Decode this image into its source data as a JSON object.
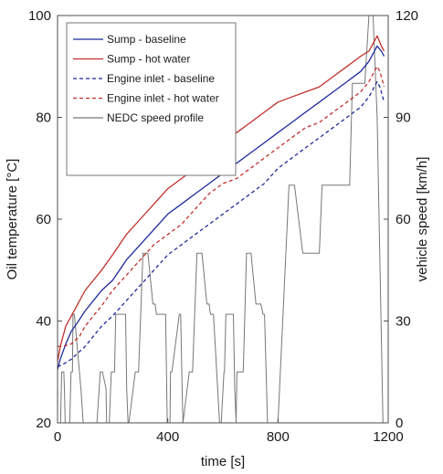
{
  "chart_data": {
    "type": "line",
    "xlabel": "time [s]",
    "ylabel": "Oil temperature [°C]",
    "y2label": "vehicle speed [km/h]",
    "xlim": [
      0,
      1200
    ],
    "ylim": [
      20,
      100
    ],
    "y2lim": [
      0,
      120
    ],
    "xticks": [
      "0",
      "400",
      "800",
      "1200"
    ],
    "xtick_values": [
      0,
      400,
      800,
      1200
    ],
    "yticks": [
      "20",
      "40",
      "60",
      "80",
      "100"
    ],
    "ytick_values": [
      20,
      40,
      60,
      80,
      100
    ],
    "y2ticks": [
      "0",
      "30",
      "60",
      "90",
      "120"
    ],
    "y2tick_values": [
      0,
      30,
      60,
      90,
      120
    ],
    "grid": false,
    "legend_position": "top-left",
    "series": [
      {
        "name": "Sump - baseline",
        "axis": "left",
        "color": "#1f2a9c",
        "style": "solid",
        "x": [
          0,
          10,
          30,
          50,
          70,
          100,
          130,
          160,
          200,
          250,
          300,
          350,
          400,
          450,
          500,
          550,
          600,
          650,
          700,
          750,
          800,
          850,
          900,
          950,
          1000,
          1050,
          1100,
          1130,
          1150,
          1160,
          1175,
          1185
        ],
        "y": [
          30.5,
          32.5,
          35.5,
          38,
          39.5,
          42,
          44,
          46,
          48,
          52,
          55,
          58,
          61,
          63,
          65,
          67,
          69,
          71,
          73,
          75,
          77,
          79,
          81,
          83,
          85,
          87,
          89,
          91,
          93,
          94,
          93,
          92
        ]
      },
      {
        "name": "Sump - hot water",
        "axis": "left",
        "color": "#c0302a",
        "style": "solid",
        "x": [
          0,
          10,
          30,
          50,
          70,
          100,
          130,
          160,
          200,
          250,
          300,
          350,
          400,
          450,
          500,
          550,
          600,
          650,
          700,
          750,
          800,
          850,
          900,
          950,
          1000,
          1050,
          1100,
          1130,
          1150,
          1160,
          1175,
          1185
        ],
        "y": [
          32,
          35,
          39,
          41,
          43,
          46,
          48,
          50,
          53,
          57,
          60,
          63,
          66,
          68,
          70,
          73,
          75,
          77,
          79,
          81,
          83,
          84,
          85,
          86,
          88,
          90,
          92,
          93,
          95,
          96,
          94,
          93
        ]
      },
      {
        "name": "Engine inlet - baseline",
        "axis": "left",
        "color": "#1f2a9c",
        "style": "dash",
        "x": [
          0,
          20,
          50,
          80,
          100,
          130,
          160,
          200,
          250,
          300,
          350,
          400,
          450,
          500,
          550,
          600,
          650,
          700,
          750,
          800,
          850,
          900,
          950,
          1000,
          1050,
          1100,
          1130,
          1150,
          1160,
          1170,
          1180,
          1185
        ],
        "y": [
          31,
          31.5,
          32.5,
          34,
          35,
          37,
          39,
          41,
          44,
          47,
          50,
          53,
          55,
          57,
          59,
          61,
          63,
          65,
          67,
          70,
          72,
          74,
          76,
          78,
          80,
          82,
          84,
          86,
          87,
          86,
          84,
          83
        ]
      },
      {
        "name": "Engine inlet - hot water",
        "axis": "left",
        "color": "#c0302a",
        "style": "dash",
        "x": [
          0,
          20,
          50,
          80,
          100,
          130,
          160,
          200,
          250,
          300,
          350,
          400,
          450,
          500,
          550,
          600,
          650,
          700,
          750,
          800,
          850,
          900,
          950,
          1000,
          1050,
          1100,
          1130,
          1150,
          1160,
          1170,
          1180,
          1185
        ],
        "y": [
          35,
          35,
          35.5,
          37,
          39,
          41,
          43,
          46,
          49,
          52,
          55,
          57,
          59,
          62,
          65,
          67,
          68,
          70,
          72,
          74,
          76,
          78,
          79,
          81,
          83,
          85,
          87,
          89,
          90,
          89,
          87,
          86
        ]
      },
      {
        "name": "NEDC speed profile",
        "axis": "right",
        "color": "#777777",
        "style": "solid",
        "x": [
          0,
          11,
          15,
          23,
          25,
          28,
          44,
          49,
          54,
          56,
          61,
          85,
          93,
          96,
          117,
          143,
          155,
          163,
          176,
          178,
          188,
          195,
          207,
          211,
          215,
          247,
          251,
          256,
          259,
          282,
          294,
          310,
          328,
          346,
          354,
          359,
          370,
          392,
          398,
          408,
          410,
          415,
          442,
          447,
          452,
          455,
          478,
          490,
          506,
          524,
          542,
          550,
          555,
          566,
          588,
          594,
          604,
          606,
          611,
          638,
          643,
          648,
          651,
          674,
          686,
          702,
          720,
          738,
          746,
          751,
          762,
          784,
          800,
          820,
          840,
          860,
          890,
          900,
          950,
          960,
          1000,
          1020,
          1060,
          1070,
          1115,
          1130,
          1145,
          1160,
          1181,
          1185,
          1200
        ],
        "y": [
          0,
          0,
          15,
          15,
          10,
          0,
          0,
          15,
          15,
          32,
          32,
          10,
          0,
          0,
          0,
          0,
          15,
          15,
          10,
          0,
          0,
          15,
          15,
          32,
          32,
          32,
          10,
          0,
          0,
          15,
          15,
          50,
          50,
          35,
          35,
          32,
          32,
          32,
          0,
          0,
          15,
          15,
          32,
          32,
          10,
          0,
          15,
          15,
          50,
          50,
          35,
          35,
          32,
          32,
          0,
          0,
          15,
          15,
          32,
          32,
          10,
          0,
          15,
          15,
          50,
          50,
          35,
          35,
          32,
          32,
          0,
          0,
          0,
          35,
          70,
          70,
          50,
          50,
          50,
          70,
          70,
          70,
          70,
          100,
          100,
          120,
          120,
          90,
          0,
          0,
          0
        ]
      }
    ]
  }
}
